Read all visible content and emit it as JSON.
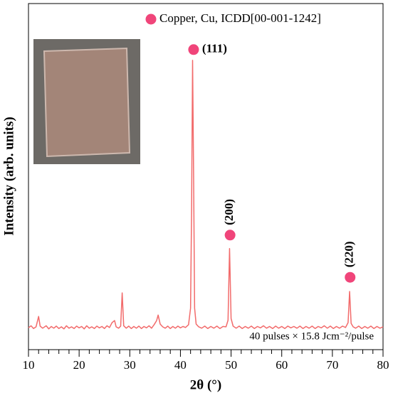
{
  "chart_data": {
    "type": "line",
    "x_label": "2θ (°)",
    "y_label": "Intensity (arb. units)",
    "legend_label": "Copper, Cu, ICDD[00-001-1242]",
    "marker_color": "#f0457a",
    "color": "#f26b6b",
    "annotation": "40 pulses × 15.8 Jcm⁻²/pulse",
    "xlim": [
      10,
      80
    ],
    "ylim": [
      0,
      100
    ],
    "xticks": [
      10,
      20,
      30,
      40,
      50,
      60,
      70,
      80
    ],
    "xminorticks": [
      12,
      14,
      16,
      18,
      22,
      24,
      26,
      28,
      32,
      34,
      36,
      38,
      42,
      44,
      46,
      48,
      52,
      54,
      56,
      58,
      62,
      64,
      66,
      68,
      72,
      74,
      76,
      78
    ],
    "peaks": [
      {
        "label": "(111)",
        "x": 42.6,
        "y": 86.7
      },
      {
        "label": "(200)",
        "x": 49.8,
        "y": 33.1
      },
      {
        "label": "(220)",
        "x": 73.5,
        "y": 20.9
      }
    ],
    "x": [
      10,
      10.5,
      11,
      11.5,
      12,
      12.3,
      12.8,
      13.5,
      14,
      14.5,
      15,
      15.5,
      16,
      16.5,
      17,
      17.5,
      18,
      18.5,
      19,
      19.5,
      20,
      20.5,
      21,
      21.5,
      22,
      22.5,
      23,
      23.5,
      24,
      24.5,
      25,
      25.5,
      26,
      26.5,
      27,
      27.3,
      27.8,
      28.2,
      28.5,
      28.8,
      29.3,
      29.8,
      30.3,
      30.8,
      31.3,
      31.8,
      32.3,
      32.8,
      33.3,
      33.8,
      34.3,
      34.8,
      35.3,
      35.6,
      36,
      36.5,
      37,
      37.5,
      38,
      38.5,
      39,
      39.5,
      40,
      40.5,
      41,
      41.6,
      42,
      42.2,
      42.4,
      42.6,
      42.8,
      43.1,
      43.6,
      44.2,
      44.8,
      45.4,
      46,
      46.6,
      47.2,
      47.8,
      48.4,
      49,
      49.4,
      49.7,
      50,
      50.4,
      51,
      51.6,
      52.2,
      52.8,
      53.4,
      54,
      54.6,
      55.2,
      55.8,
      56.4,
      57,
      57.6,
      58.2,
      58.8,
      59.4,
      60,
      60.6,
      61.2,
      61.8,
      62.4,
      63,
      63.6,
      64.2,
      64.8,
      65.4,
      66,
      66.6,
      67.2,
      67.8,
      68.4,
      69,
      69.6,
      70.2,
      70.8,
      71.4,
      72,
      72.6,
      73.1,
      73.4,
      73.7,
      74.1,
      74.6,
      75.2,
      75.8,
      76.4,
      77,
      77.6,
      78.2,
      78.8,
      79.4,
      80
    ],
    "values": [
      6.3,
      6.9,
      6.1,
      6.6,
      9.6,
      6.8,
      6.2,
      6.9,
      6.0,
      6.7,
      6.2,
      6.8,
      6.1,
      6.6,
      6.0,
      6.9,
      6.2,
      6.6,
      6.1,
      6.8,
      6.3,
      6.7,
      6.0,
      6.9,
      6.2,
      6.6,
      6.1,
      6.8,
      6.3,
      6.7,
      6.1,
      6.9,
      6.4,
      7.8,
      8.4,
      6.6,
      6.2,
      6.8,
      16.4,
      6.9,
      6.2,
      6.8,
      6.1,
      6.7,
      6.2,
      6.8,
      6.1,
      6.7,
      6.3,
      6.9,
      6.2,
      7.2,
      8.4,
      10.0,
      7.4,
      6.6,
      6.2,
      6.8,
      6.1,
      6.7,
      6.2,
      6.8,
      6.3,
      6.7,
      6.4,
      7.2,
      12,
      40,
      83.6,
      50,
      12,
      7.4,
      6.6,
      6.2,
      6.8,
      6.1,
      6.7,
      6.2,
      6.8,
      6.1,
      6.7,
      6.6,
      8.5,
      29.2,
      9,
      6.8,
      6.2,
      6.8,
      6.1,
      6.7,
      6.2,
      6.8,
      6.1,
      6.7,
      6.3,
      6.9,
      6.2,
      6.7,
      6.1,
      6.8,
      6.2,
      6.7,
      6.1,
      6.8,
      6.3,
      6.7,
      6.2,
      6.8,
      6.1,
      6.7,
      6.2,
      6.8,
      6.1,
      6.7,
      6.3,
      6.9,
      6.2,
      6.8,
      6.1,
      6.7,
      6.2,
      6.8,
      6.4,
      7.8,
      16.8,
      7.6,
      6.6,
      6.2,
      6.8,
      6.1,
      6.7,
      6.2,
      6.8,
      6.1,
      6.7,
      6.2,
      6.6
    ]
  }
}
